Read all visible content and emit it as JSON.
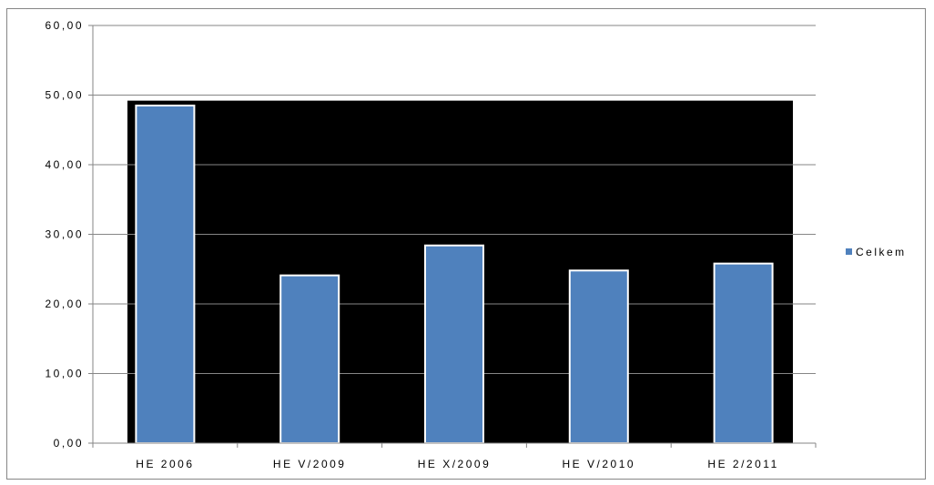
{
  "chart_data": {
    "type": "bar",
    "categories": [
      "HE 2006",
      "HE V/2009",
      "HE X/2009",
      "HE V/2010",
      "HE 2/2011"
    ],
    "series": [
      {
        "name": "Celkem",
        "values": [
          48.5,
          24.1,
          28.4,
          24.8,
          25.8
        ]
      }
    ],
    "ylim": [
      0,
      60
    ],
    "yticks": [
      "0,00",
      "10,00",
      "20,00",
      "30,00",
      "40,00",
      "50,00",
      "60,00"
    ],
    "grid": true,
    "legend_position": "right",
    "colors": {
      "bar": "#4f81bd",
      "bar_border": "#ffffff",
      "plot_fill": "#000000",
      "gridline": "#868686",
      "axis": "#868686"
    }
  }
}
